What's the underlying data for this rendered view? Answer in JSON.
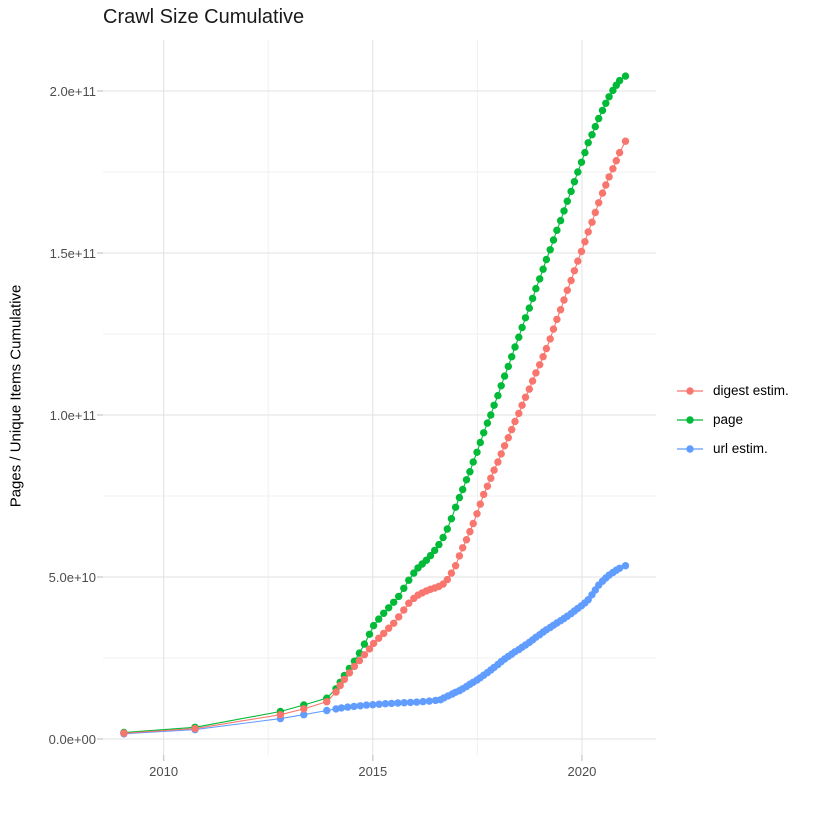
{
  "title": "Crawl Size Cumulative",
  "y_axis_title": "Pages / Unique Items Cumulative",
  "legend": {
    "position": "right",
    "items": [
      {
        "label": "digest estim.",
        "color": "#F8766D"
      },
      {
        "label": "page",
        "color": "#00BA38"
      },
      {
        "label": "url estim.",
        "color": "#619CFF"
      }
    ]
  },
  "colors": {
    "digest_estim": "#F8766D",
    "page": "#00BA38",
    "url_estim": "#619CFF",
    "grid_major": "#E2E2E2",
    "grid_minor": "#F0F0F0",
    "axis_text": "#4d4d4d",
    "tick_mark": "#c6c6c6",
    "background": "#ffffff"
  },
  "chart_data": {
    "type": "line",
    "title": "Crawl Size Cumulative",
    "xlabel": "",
    "ylabel": "Pages / Unique Items Cumulative",
    "grid": true,
    "legend_position": "right",
    "x_unit": "year (decimal)",
    "y_unit_multiplier": 1000000000,
    "y_unit_note": "values stored in billions (1e9) of pages / unique items",
    "xlim": [
      2008.55,
      2021.77
    ],
    "ylim_billions": [
      0,
      215
    ],
    "x_ticks": [
      {
        "value": 2010,
        "label": "2010"
      },
      {
        "value": 2015,
        "label": "2015"
      },
      {
        "value": 2020,
        "label": "2020"
      }
    ],
    "x_minor_ticks": [
      2012.5,
      2017.5
    ],
    "y_ticks": [
      {
        "value": 0,
        "label": "0.0e+00"
      },
      {
        "value": 50,
        "label": "5.0e+10"
      },
      {
        "value": 100,
        "label": "1.0e+11"
      },
      {
        "value": 150,
        "label": "1.5e+11"
      },
      {
        "value": 200,
        "label": "2.0e+11"
      }
    ],
    "y_minor_ticks": [
      25,
      75,
      125,
      175
    ],
    "draw_order": [
      "url estim.",
      "page",
      "digest estim."
    ],
    "series": [
      {
        "name": "url estim.",
        "color": "#619CFF",
        "points": [
          [
            2009.05,
            1.6
          ],
          [
            2010.75,
            2.9
          ],
          [
            2012.79,
            6.3
          ],
          [
            2013.35,
            7.5
          ],
          [
            2013.9,
            8.8
          ],
          [
            2014.12,
            9.3
          ],
          [
            2014.25,
            9.6
          ],
          [
            2014.4,
            9.85
          ],
          [
            2014.55,
            10.05
          ],
          [
            2014.7,
            10.25
          ],
          [
            2014.85,
            10.45
          ],
          [
            2015.0,
            10.6
          ],
          [
            2015.15,
            10.75
          ],
          [
            2015.3,
            10.9
          ],
          [
            2015.45,
            11.0
          ],
          [
            2015.6,
            11.1
          ],
          [
            2015.75,
            11.2
          ],
          [
            2015.9,
            11.3
          ],
          [
            2016.05,
            11.4
          ],
          [
            2016.2,
            11.55
          ],
          [
            2016.35,
            11.7
          ],
          [
            2016.5,
            11.9
          ],
          [
            2016.62,
            12.1
          ],
          [
            2016.7,
            12.7
          ],
          [
            2016.8,
            13.3
          ],
          [
            2016.9,
            13.9
          ],
          [
            2016.98,
            14.4
          ],
          [
            2017.07,
            14.9
          ],
          [
            2017.15,
            15.5
          ],
          [
            2017.24,
            16.2
          ],
          [
            2017.32,
            16.9
          ],
          [
            2017.4,
            17.5
          ],
          [
            2017.49,
            18.2
          ],
          [
            2017.57,
            18.9
          ],
          [
            2017.65,
            19.7
          ],
          [
            2017.74,
            20.5
          ],
          [
            2017.82,
            21.3
          ],
          [
            2017.9,
            22.1
          ],
          [
            2017.99,
            23.0
          ],
          [
            2018.07,
            23.9
          ],
          [
            2018.15,
            24.7
          ],
          [
            2018.24,
            25.5
          ],
          [
            2018.32,
            26.2
          ],
          [
            2018.4,
            26.9
          ],
          [
            2018.49,
            27.6
          ],
          [
            2018.57,
            28.3
          ],
          [
            2018.65,
            29.0
          ],
          [
            2018.74,
            29.8
          ],
          [
            2018.82,
            30.6
          ],
          [
            2018.9,
            31.4
          ],
          [
            2018.99,
            32.2
          ],
          [
            2019.07,
            33.0
          ],
          [
            2019.15,
            33.7
          ],
          [
            2019.24,
            34.4
          ],
          [
            2019.32,
            35.1
          ],
          [
            2019.4,
            35.8
          ],
          [
            2019.49,
            36.5
          ],
          [
            2019.57,
            37.2
          ],
          [
            2019.65,
            37.9
          ],
          [
            2019.74,
            38.7
          ],
          [
            2019.82,
            39.5
          ],
          [
            2019.9,
            40.3
          ],
          [
            2019.99,
            41.1
          ],
          [
            2020.07,
            42.0
          ],
          [
            2020.15,
            43.0
          ],
          [
            2020.24,
            44.5
          ],
          [
            2020.32,
            46.0
          ],
          [
            2020.4,
            47.5
          ],
          [
            2020.49,
            48.7
          ],
          [
            2020.57,
            49.7
          ],
          [
            2020.65,
            50.6
          ],
          [
            2020.74,
            51.4
          ],
          [
            2020.82,
            52.1
          ],
          [
            2020.9,
            52.7
          ],
          [
            2021.04,
            53.5
          ]
        ]
      },
      {
        "name": "page",
        "color": "#00BA38",
        "points": [
          [
            2009.05,
            2.0
          ],
          [
            2010.75,
            3.6
          ],
          [
            2012.79,
            8.5
          ],
          [
            2013.35,
            10.5
          ],
          [
            2013.9,
            12.6
          ],
          [
            2014.12,
            15.5
          ],
          [
            2014.22,
            17.5
          ],
          [
            2014.32,
            19.6
          ],
          [
            2014.44,
            21.8
          ],
          [
            2014.56,
            24.0
          ],
          [
            2014.68,
            26.5
          ],
          [
            2014.8,
            29.3
          ],
          [
            2014.92,
            32.3
          ],
          [
            2015.02,
            35.0
          ],
          [
            2015.14,
            37.0
          ],
          [
            2015.26,
            38.8
          ],
          [
            2015.38,
            40.5
          ],
          [
            2015.5,
            42.2
          ],
          [
            2015.62,
            44.0
          ],
          [
            2015.74,
            46.5
          ],
          [
            2015.86,
            49.0
          ],
          [
            2015.98,
            51.2
          ],
          [
            2016.08,
            52.8
          ],
          [
            2016.18,
            54.0
          ],
          [
            2016.28,
            55.2
          ],
          [
            2016.38,
            56.6
          ],
          [
            2016.48,
            58.2
          ],
          [
            2016.58,
            60.0
          ],
          [
            2016.68,
            62.2
          ],
          [
            2016.78,
            64.8
          ],
          [
            2016.88,
            68.0
          ],
          [
            2016.98,
            71.5
          ],
          [
            2017.07,
            74.5
          ],
          [
            2017.15,
            77.0
          ],
          [
            2017.24,
            80.0
          ],
          [
            2017.32,
            82.5
          ],
          [
            2017.4,
            85.5
          ],
          [
            2017.49,
            88.5
          ],
          [
            2017.57,
            91.5
          ],
          [
            2017.65,
            94.5
          ],
          [
            2017.74,
            97.5
          ],
          [
            2017.82,
            100.0
          ],
          [
            2017.9,
            103.0
          ],
          [
            2017.99,
            106.0
          ],
          [
            2018.07,
            109.0
          ],
          [
            2018.15,
            112.0
          ],
          [
            2018.24,
            115.0
          ],
          [
            2018.32,
            118.0
          ],
          [
            2018.4,
            121.0
          ],
          [
            2018.49,
            124.0
          ],
          [
            2018.57,
            127.0
          ],
          [
            2018.65,
            130.0
          ],
          [
            2018.74,
            133.0
          ],
          [
            2018.82,
            136.0
          ],
          [
            2018.9,
            139.0
          ],
          [
            2018.99,
            142.0
          ],
          [
            2019.07,
            145.0
          ],
          [
            2019.15,
            148.0
          ],
          [
            2019.24,
            151.0
          ],
          [
            2019.32,
            154.0
          ],
          [
            2019.4,
            157.0
          ],
          [
            2019.49,
            160.0
          ],
          [
            2019.57,
            163.0
          ],
          [
            2019.65,
            166.0
          ],
          [
            2019.74,
            169.0
          ],
          [
            2019.82,
            172.0
          ],
          [
            2019.9,
            175.0
          ],
          [
            2019.99,
            178.0
          ],
          [
            2020.07,
            181.0
          ],
          [
            2020.15,
            184.0
          ],
          [
            2020.24,
            186.5
          ],
          [
            2020.32,
            189.0
          ],
          [
            2020.4,
            191.5
          ],
          [
            2020.49,
            194.0
          ],
          [
            2020.57,
            196.2
          ],
          [
            2020.65,
            198.2
          ],
          [
            2020.74,
            200.2
          ],
          [
            2020.82,
            201.8
          ],
          [
            2020.9,
            203.2
          ],
          [
            2021.04,
            204.6
          ]
        ]
      },
      {
        "name": "digest estim.",
        "color": "#F8766D",
        "points": [
          [
            2009.05,
            1.8
          ],
          [
            2010.75,
            3.2
          ],
          [
            2012.79,
            7.5
          ],
          [
            2013.35,
            9.3
          ],
          [
            2013.9,
            11.5
          ],
          [
            2014.12,
            14.5
          ],
          [
            2014.22,
            16.5
          ],
          [
            2014.32,
            18.4
          ],
          [
            2014.44,
            20.4
          ],
          [
            2014.56,
            22.4
          ],
          [
            2014.68,
            24.2
          ],
          [
            2014.8,
            26.0
          ],
          [
            2014.92,
            27.8
          ],
          [
            2015.02,
            29.5
          ],
          [
            2015.14,
            31.1
          ],
          [
            2015.26,
            32.6
          ],
          [
            2015.38,
            34.2
          ],
          [
            2015.5,
            35.7
          ],
          [
            2015.62,
            37.7
          ],
          [
            2015.74,
            39.8
          ],
          [
            2015.86,
            41.9
          ],
          [
            2015.98,
            43.4
          ],
          [
            2016.08,
            44.4
          ],
          [
            2016.18,
            45.1
          ],
          [
            2016.28,
            45.7
          ],
          [
            2016.38,
            46.2
          ],
          [
            2016.48,
            46.6
          ],
          [
            2016.58,
            47.1
          ],
          [
            2016.68,
            47.8
          ],
          [
            2016.78,
            49.2
          ],
          [
            2016.88,
            51.2
          ],
          [
            2016.98,
            53.5
          ],
          [
            2017.07,
            56.5
          ],
          [
            2017.15,
            59.0
          ],
          [
            2017.24,
            61.5
          ],
          [
            2017.32,
            64.0
          ],
          [
            2017.4,
            66.5
          ],
          [
            2017.49,
            69.5
          ],
          [
            2017.57,
            72.5
          ],
          [
            2017.65,
            75.5
          ],
          [
            2017.74,
            78.0
          ],
          [
            2017.82,
            80.5
          ],
          [
            2017.9,
            83.0
          ],
          [
            2017.99,
            85.5
          ],
          [
            2018.07,
            88.0
          ],
          [
            2018.15,
            90.5
          ],
          [
            2018.24,
            93.0
          ],
          [
            2018.32,
            95.5
          ],
          [
            2018.4,
            98.0
          ],
          [
            2018.49,
            100.5
          ],
          [
            2018.57,
            103.0
          ],
          [
            2018.65,
            105.5
          ],
          [
            2018.74,
            108.0
          ],
          [
            2018.82,
            110.5
          ],
          [
            2018.9,
            113.0
          ],
          [
            2018.99,
            115.5
          ],
          [
            2019.07,
            118.0
          ],
          [
            2019.15,
            120.5
          ],
          [
            2019.24,
            123.5
          ],
          [
            2019.32,
            126.5
          ],
          [
            2019.4,
            129.5
          ],
          [
            2019.49,
            132.5
          ],
          [
            2019.57,
            135.5
          ],
          [
            2019.65,
            138.5
          ],
          [
            2019.74,
            141.5
          ],
          [
            2019.82,
            144.5
          ],
          [
            2019.9,
            147.5
          ],
          [
            2019.99,
            150.5
          ],
          [
            2020.07,
            153.5
          ],
          [
            2020.15,
            156.5
          ],
          [
            2020.24,
            159.5
          ],
          [
            2020.32,
            162.5
          ],
          [
            2020.4,
            165.5
          ],
          [
            2020.49,
            168.5
          ],
          [
            2020.57,
            171.0
          ],
          [
            2020.65,
            173.5
          ],
          [
            2020.74,
            176.0
          ],
          [
            2020.82,
            178.5
          ],
          [
            2020.9,
            181.0
          ],
          [
            2021.04,
            184.5
          ]
        ]
      }
    ]
  }
}
